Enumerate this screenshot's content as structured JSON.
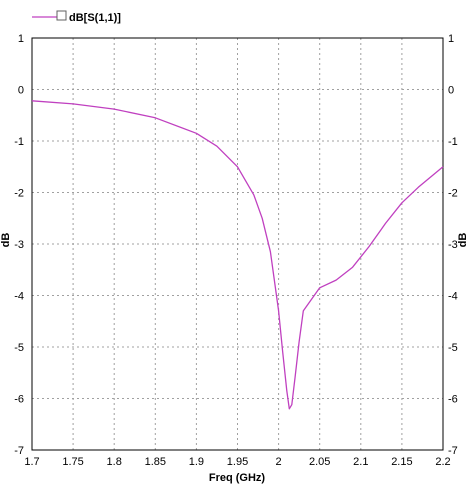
{
  "chart_data": {
    "type": "line",
    "xlabel": "Freq (GHz)",
    "ylabel_left": "dB",
    "ylabel_right": "dB",
    "xlim": [
      1.7,
      2.2
    ],
    "ylim": [
      -7,
      1
    ],
    "xticks": [
      "1.7",
      "1.75",
      "1.8",
      "1.85",
      "1.9",
      "1.95",
      "2",
      "2.05",
      "2.1",
      "2.15",
      "2.2"
    ],
    "yticks": [
      "1",
      "0",
      "-1",
      "-2",
      "-3",
      "-4",
      "-5",
      "-6",
      "-7"
    ],
    "grid": true,
    "legend_position": "top-left",
    "series": [
      {
        "name": "dB[S(1,1)]",
        "color": "#c040c0",
        "x": [
          1.7,
          1.75,
          1.8,
          1.85,
          1.9,
          1.925,
          1.95,
          1.97,
          1.98,
          1.99,
          2.0,
          2.005,
          2.01,
          2.013,
          2.016,
          2.02,
          2.025,
          2.03,
          2.05,
          2.07,
          2.09,
          2.11,
          2.13,
          2.15,
          2.17,
          2.2
        ],
        "values": [
          -0.22,
          -0.28,
          -0.38,
          -0.55,
          -0.85,
          -1.1,
          -1.5,
          -2.05,
          -2.5,
          -3.15,
          -4.3,
          -5.1,
          -5.85,
          -6.2,
          -6.12,
          -5.6,
          -4.9,
          -4.3,
          -3.85,
          -3.7,
          -3.45,
          -3.05,
          -2.6,
          -2.2,
          -1.9,
          -1.5
        ]
      }
    ]
  }
}
